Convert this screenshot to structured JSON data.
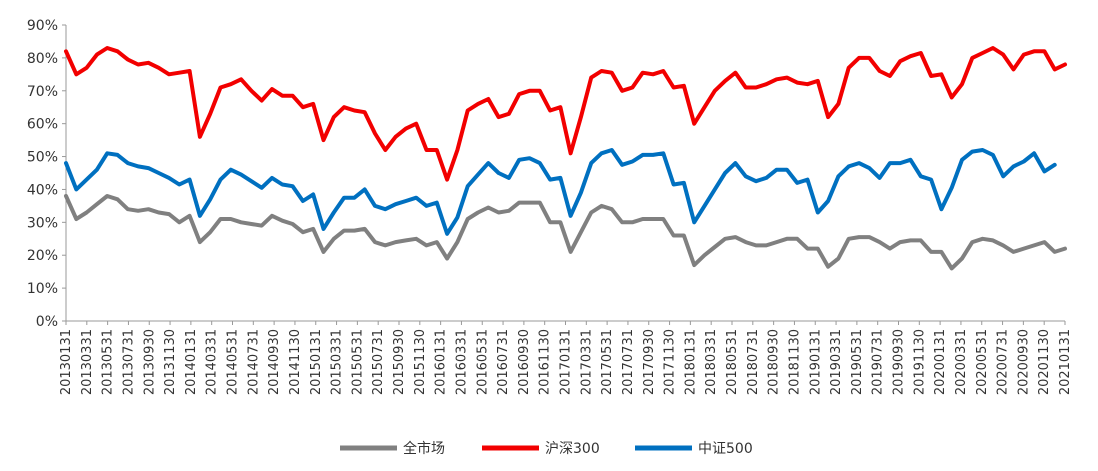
{
  "chart_data": {
    "type": "line",
    "title": "",
    "xlabel": "",
    "ylabel": "",
    "ylim": [
      0,
      90
    ],
    "y_ticks": [
      "0%",
      "10%",
      "20%",
      "30%",
      "40%",
      "50%",
      "60%",
      "70%",
      "80%",
      "90%"
    ],
    "grid": false,
    "legend_position": "bottom",
    "x_tick_labels": [
      "20130131",
      "20130331",
      "20130531",
      "20130731",
      "20130930",
      "20131130",
      "20140131",
      "20140331",
      "20140531",
      "20140731",
      "20140930",
      "20141130",
      "20150131",
      "20150331",
      "20150531",
      "20150731",
      "20150930",
      "20151130",
      "20160131",
      "20160331",
      "20160531",
      "20160731",
      "20160930",
      "20161130",
      "20170131",
      "20170331",
      "20170531",
      "20170731",
      "20170930",
      "20171130",
      "20180131",
      "20180331",
      "20180531",
      "20180731",
      "20180930",
      "20181130",
      "20190131",
      "20190331",
      "20190531",
      "20190731",
      "20190930",
      "20191130",
      "20200131",
      "20200331",
      "20200531",
      "20200731",
      "20200930",
      "20201130",
      "20210131"
    ],
    "series": [
      {
        "name": "全市场",
        "color": "#808080",
        "values": [
          38,
          31,
          33,
          35.5,
          38,
          37,
          34,
          33.5,
          34,
          33,
          32.5,
          30,
          32,
          24,
          27,
          31,
          31,
          30,
          29.5,
          29,
          32,
          30.5,
          29.5,
          27,
          28,
          21,
          25,
          27.5,
          27.5,
          28,
          24,
          23,
          24,
          24.5,
          25,
          23,
          24,
          19,
          24,
          31,
          33,
          34.5,
          33,
          33.5,
          36,
          36,
          36,
          30,
          30,
          21,
          27,
          33,
          35,
          34,
          30,
          30,
          31,
          31,
          31,
          26,
          26,
          17,
          20,
          22.5,
          25,
          25.5,
          24,
          23,
          23,
          24,
          25,
          25,
          22,
          22,
          16.5,
          19,
          25,
          25.5,
          25.5,
          24,
          22,
          24,
          24.5,
          24.5,
          21,
          21,
          16,
          19,
          24,
          25,
          24.5,
          23,
          21,
          22,
          23,
          24,
          21,
          22
        ]
      },
      {
        "name": "沪深300",
        "color": "#f20000",
        "values": [
          82,
          75,
          77,
          81,
          83,
          82,
          79.5,
          78,
          78.5,
          77,
          75,
          75.5,
          76,
          56,
          63,
          71,
          72,
          73.5,
          70,
          67,
          70.5,
          68.5,
          68.5,
          65,
          66,
          55,
          62,
          65,
          64,
          63.5,
          57,
          52,
          56,
          58.5,
          60,
          52,
          52,
          43,
          52,
          64,
          66,
          67.5,
          62,
          63,
          69,
          70,
          70,
          64,
          65,
          51,
          62,
          74,
          76,
          75.5,
          70,
          71,
          75.5,
          75,
          76,
          71,
          71.5,
          60,
          65,
          70,
          73,
          75.5,
          71,
          71,
          72,
          73.5,
          74,
          72.5,
          72,
          73,
          62,
          66,
          77,
          80,
          80,
          76,
          74.5,
          79,
          80.5,
          81.5,
          74.5,
          75,
          68,
          72,
          80,
          81.5,
          83,
          81,
          76.5,
          81,
          82,
          82,
          76.5,
          78
        ]
      },
      {
        "name": "中证500",
        "color": "#0070c0",
        "values": [
          48,
          40,
          43,
          46,
          51,
          50.5,
          48,
          47,
          46.5,
          45,
          43.5,
          41.5,
          43,
          32,
          37,
          43,
          46,
          44.5,
          42.5,
          40.5,
          43.5,
          41.5,
          41,
          36.5,
          38.5,
          28,
          33,
          37.5,
          37.5,
          40,
          35,
          34,
          35.5,
          36.5,
          37.5,
          35,
          36,
          26.5,
          31.5,
          41,
          44.5,
          48,
          45,
          43.5,
          49,
          49.5,
          48,
          43,
          43.5,
          32,
          39,
          48,
          51,
          52,
          47.5,
          48.5,
          50.5,
          50.5,
          51,
          41.5,
          42,
          30,
          35,
          40,
          45,
          48,
          44,
          42.5,
          43.5,
          46,
          46,
          42,
          43,
          33,
          36.5,
          44,
          47,
          48,
          46.5,
          43.5,
          48,
          48,
          49,
          44,
          43,
          34,
          40.5,
          49,
          51.5,
          52,
          50.5,
          44,
          47,
          48.5,
          51,
          45.5,
          47.5
        ]
      }
    ]
  }
}
